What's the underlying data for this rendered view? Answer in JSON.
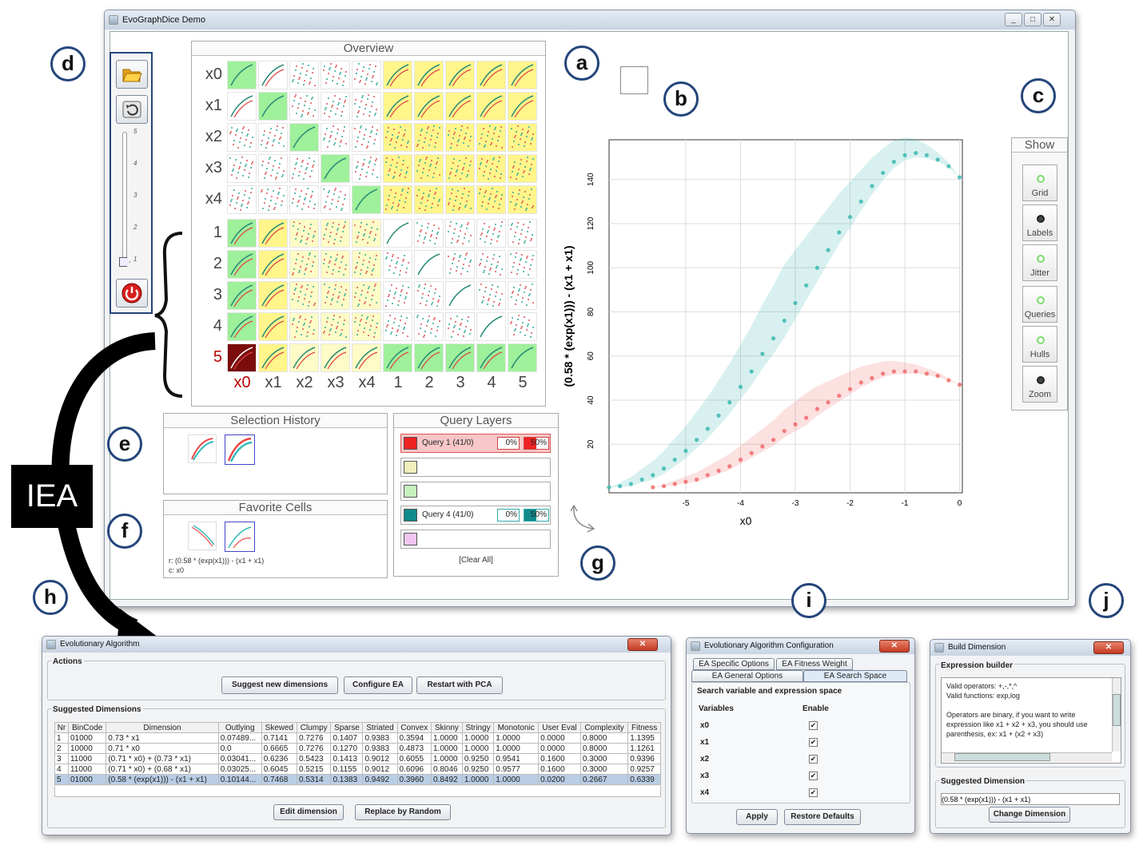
{
  "main_window": {
    "title": "EvoGraphDice Demo",
    "controls": [
      "_",
      "□",
      "✕"
    ]
  },
  "markers": [
    "a",
    "b",
    "c",
    "d",
    "e",
    "f",
    "g",
    "h",
    "i",
    "j"
  ],
  "iea_label": "IEA",
  "overview": {
    "title": "Overview",
    "row_labels": [
      "x0",
      "x1",
      "x2",
      "x3",
      "x4",
      "1",
      "2",
      "3",
      "4",
      "5"
    ],
    "col_labels": [
      "x0",
      "x1",
      "x2",
      "x3",
      "x4",
      "1",
      "2",
      "3",
      "4",
      "5"
    ],
    "selected_row": "5",
    "selected_col": "x0",
    "colors": {
      "green": "#9ff09a",
      "yellow": "#fff58a",
      "paleyellow": "#fdfbc6",
      "selected": "#7a0c0c",
      "white": "#ffffff"
    }
  },
  "toolbar": {
    "open_icon": "folder-open-icon",
    "reset_icon": "rotate-icon",
    "power_icon": "power-icon",
    "slider_ticks": [
      "5",
      "4",
      "3",
      "2",
      "1"
    ],
    "slider_value": 1
  },
  "scatter": {
    "xlabel": "x0",
    "ylabel": "(0.58 * (exp(x1))) - (x1 + x1)",
    "xticks": [
      "-5",
      "-4",
      "-3",
      "-2",
      "-1",
      "0"
    ],
    "yticks": [
      "20",
      "40",
      "60",
      "80",
      "100",
      "120",
      "140"
    ]
  },
  "chart_data": {
    "type": "scatter",
    "xlabel": "x0",
    "ylabel": "(0.58 * (exp(x1))) - (x1 + x1)",
    "xlim": [
      -6.4,
      0.05
    ],
    "ylim": [
      -2,
      158
    ],
    "grid": true,
    "series": [
      {
        "color": "#3cb8b2",
        "x": [
          -6.4,
          -6.2,
          -6.0,
          -5.8,
          -5.6,
          -5.4,
          -5.2,
          -5.0,
          -4.8,
          -4.6,
          -4.4,
          -4.2,
          -4.0,
          -3.8,
          -3.6,
          -3.4,
          -3.2,
          -3.0,
          -2.8,
          -2.6,
          -2.4,
          -2.2,
          -2.0,
          -1.8,
          -1.6,
          -1.4,
          -1.2,
          -1.0,
          -0.8,
          -0.6,
          -0.4,
          -0.2,
          0.0
        ],
        "y": [
          0.5,
          1,
          2,
          4,
          6,
          9,
          13,
          17,
          22,
          27,
          33,
          39,
          46,
          53,
          61,
          68,
          76,
          84,
          92,
          100,
          108,
          116,
          123,
          130,
          137,
          143,
          148,
          151,
          152,
          151,
          149,
          146,
          141
        ]
      },
      {
        "color": "#ee6a6a",
        "x": [
          -5.6,
          -5.4,
          -5.2,
          -5.0,
          -4.8,
          -4.6,
          -4.4,
          -4.2,
          -4.0,
          -3.8,
          -3.6,
          -3.4,
          -3.2,
          -3.0,
          -2.8,
          -2.6,
          -2.4,
          -2.2,
          -2.0,
          -1.8,
          -1.6,
          -1.4,
          -1.2,
          -1.0,
          -0.8,
          -0.6,
          -0.4,
          -0.2,
          0.0
        ],
        "y": [
          0.5,
          1,
          2,
          3,
          4,
          6,
          8,
          10,
          13,
          16,
          19,
          22,
          26,
          29,
          32,
          36,
          39,
          42,
          45,
          48,
          50,
          52,
          53,
          53,
          53,
          52,
          51,
          49,
          47
        ]
      }
    ]
  },
  "show_panel": {
    "title": "Show",
    "buttons": [
      {
        "label": "Grid",
        "on": true
      },
      {
        "label": "Labels",
        "on": false
      },
      {
        "label": "Jitter",
        "on": true
      },
      {
        "label": "Queries",
        "on": true
      },
      {
        "label": "Hulls",
        "on": true
      },
      {
        "label": "Zoom",
        "on": false
      }
    ],
    "on_color": "#7ddc6e",
    "off_color": "#3f4a3e"
  },
  "selection_history": {
    "title": "Selection History"
  },
  "query_layers": {
    "title": "Query Layers",
    "clear_all": "[Clear All]",
    "rows": [
      {
        "color": "#ee2222",
        "label": "Query 1 (41/0)",
        "pct1": "0%",
        "pct2": "50%",
        "active": true
      },
      {
        "color": "#f2edbb",
        "label": "",
        "active": false
      },
      {
        "color": "#c6f0bd",
        "label": "",
        "active": false
      },
      {
        "color": "#108a8a",
        "label": "Query 4 (41/0)",
        "pct1": "0%",
        "pct2": "50%",
        "active": false
      },
      {
        "color": "#f0c6f0",
        "label": "",
        "active": false
      }
    ]
  },
  "favorite_cells": {
    "title": "Favorite Cells",
    "info_r": "r: (0.58 * (exp(x1))) - (x1 + x1)",
    "info_c": "c: x0"
  },
  "ea_window": {
    "title": "Evolutionary Algorithm",
    "actions_label": "Actions",
    "buttons": [
      "Suggest new dimensions",
      "Configure EA",
      "Restart with PCA"
    ],
    "suggested_label": "Suggested Dimensions",
    "columns": [
      "Nr",
      "BinCode",
      "Dimension",
      "Outlying",
      "Skewed",
      "Clumpy",
      "Sparse",
      "Striated",
      "Convex",
      "Skinny",
      "Stringy",
      "Monotonic",
      "User Eval",
      "Complexity",
      "Fitness"
    ],
    "rows": [
      [
        "1",
        "01000",
        "0.73 * x1",
        "0.07489...",
        "0.7141",
        "0.7276",
        "0.1407",
        "0.9383",
        "0.3594",
        "1.0000",
        "1.0000",
        "1.0000",
        "0.0000",
        "0.8000",
        "1.1395"
      ],
      [
        "2",
        "10000",
        "0.71 * x0",
        "0.0",
        "0.6665",
        "0.7276",
        "0.1270",
        "0.9383",
        "0.4873",
        "1.0000",
        "1.0000",
        "1.0000",
        "0.0000",
        "0.8000",
        "1.1261"
      ],
      [
        "3",
        "11000",
        "(0.71 * x0) + (0.73 * x1)",
        "0.03041...",
        "0.6236",
        "0.5423",
        "0.1413",
        "0.9012",
        "0.6055",
        "1.0000",
        "0.9250",
        "0.9541",
        "0.1600",
        "0.3000",
        "0.9396"
      ],
      [
        "4",
        "11000",
        "(0.71 * x0) + (0.68 * x1)",
        "0.03025...",
        "0.6045",
        "0.5215",
        "0.1155",
        "0.9012",
        "0.6096",
        "0.8046",
        "0.9250",
        "0.9577",
        "0.1600",
        "0.3000",
        "0.9257"
      ],
      [
        "5",
        "01000",
        "(0.58 * (exp(x1))) - (x1 + x1)",
        "0.10144...",
        "0.7468",
        "0.5314",
        "0.1383",
        "0.9492",
        "0.3960",
        "0.8492",
        "1.0000",
        "1.0000",
        "0.0200",
        "0.2667",
        "0.6339"
      ]
    ],
    "selected_row": 4,
    "bottom_buttons": [
      "Edit dimension",
      "Replace by Random"
    ]
  },
  "config_window": {
    "title": "Evolutionary Algorithm Configuration",
    "tabs_row1": [
      "EA Specific Options",
      "EA Fitness Weight"
    ],
    "tabs_row2": [
      "EA General Options",
      "EA Search Space"
    ],
    "section": "Search variable and expression space",
    "col_variables": "Variables",
    "col_enable": "Enable",
    "variables": [
      "x0",
      "x1",
      "x2",
      "x3",
      "x4"
    ],
    "buttons": [
      "Apply",
      "Restore Defaults"
    ]
  },
  "build_window": {
    "title": "Build Dimension",
    "expr_label": "Expression builder",
    "text_lines": [
      "Valid operators: +,-,*,^",
      "Valid functions: exp,log",
      "",
      "Operators are binary, if you want to write",
      "expression like x1 + x2 + x3, you should use",
      "parenthesis, ex: x1 + (x2 + x3)"
    ],
    "suggested_label": "Suggested Dimension",
    "suggested_value": "(0.58 * (exp(x1))) - (x1 + x1)",
    "button": "Change Dimension"
  }
}
